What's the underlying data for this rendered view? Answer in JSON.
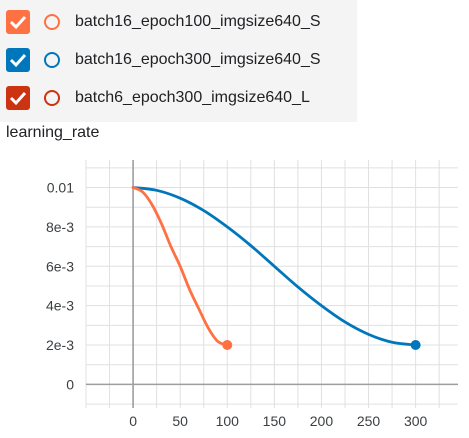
{
  "runs": [
    {
      "label": "batch16_epoch100_imgsize640_S",
      "color": "#ff7043",
      "checked": true
    },
    {
      "label": "batch16_epoch300_imgsize640_S",
      "color": "#0077bb",
      "checked": true
    },
    {
      "label": "batch6_epoch300_imgsize640_L",
      "color": "#cc3311",
      "checked": true
    }
  ],
  "chart_data": {
    "type": "line",
    "title": "learning_rate",
    "xlabel": "",
    "ylabel": "",
    "xlim": [
      -50,
      345
    ],
    "ylim": [
      -0.0012,
      0.0114
    ],
    "grid": true,
    "x_ticks": [
      0,
      50,
      100,
      150,
      200,
      250,
      300
    ],
    "x_tick_labels": [
      "0",
      "50",
      "100",
      "150",
      "200",
      "250",
      "300"
    ],
    "y_ticks": [
      0,
      0.002,
      0.004,
      0.006,
      0.008,
      0.01
    ],
    "y_tick_labels": [
      "0",
      "2e-3",
      "4e-3",
      "6e-3",
      "8e-3",
      "0.01"
    ],
    "series": [
      {
        "name": "batch16_epoch100_imgsize640_S",
        "color": "#ff7043",
        "x": [
          0,
          10,
          20,
          30,
          40,
          50,
          60,
          70,
          80,
          90,
          100
        ],
        "y": [
          0.01,
          0.00978,
          0.00914,
          0.00818,
          0.00702,
          0.006,
          0.00482,
          0.00382,
          0.00285,
          0.00218,
          0.002
        ]
      },
      {
        "name": "batch16_epoch300_imgsize640_S",
        "color": "#0077bb",
        "x": [
          0,
          25,
          50,
          75,
          100,
          125,
          150,
          175,
          200,
          225,
          250,
          275,
          300
        ],
        "y": [
          0.01,
          0.00986,
          0.00946,
          0.00883,
          0.008,
          0.00705,
          0.006,
          0.00495,
          0.004,
          0.00317,
          0.00254,
          0.00214,
          0.002
        ]
      }
    ]
  }
}
